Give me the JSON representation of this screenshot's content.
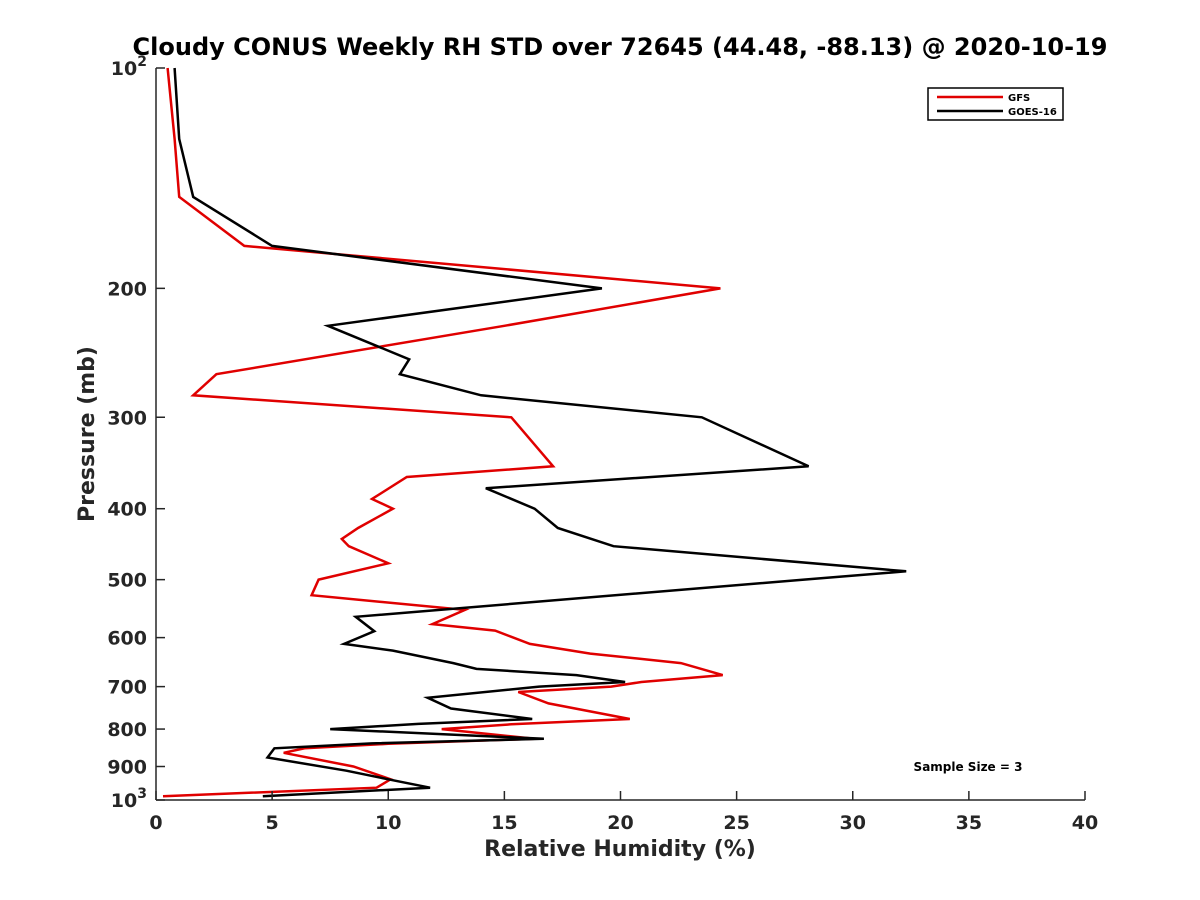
{
  "chart_data": {
    "type": "line",
    "title": "Cloudy CONUS Weekly RH STD over 72645 (44.48, -88.13) @ 2020-10-19",
    "xlabel": "Relative Humidity (%)",
    "ylabel": "Pressure (mb)",
    "xlim": [
      0,
      40
    ],
    "ylim": [
      100,
      1000
    ],
    "y_scale": "log",
    "y_reversed": true,
    "x_ticks": [
      "0",
      "5",
      "10",
      "15",
      "20",
      "25",
      "30",
      "35",
      "40"
    ],
    "y_ticks": [
      {
        "value": 100,
        "base": "10",
        "exp": "2"
      },
      {
        "value": 200,
        "label": "200"
      },
      {
        "value": 300,
        "label": "300"
      },
      {
        "value": 400,
        "label": "400"
      },
      {
        "value": 500,
        "label": "500"
      },
      {
        "value": 600,
        "label": "600"
      },
      {
        "value": 700,
        "label": "700"
      },
      {
        "value": 800,
        "label": "800"
      },
      {
        "value": 900,
        "label": "900"
      },
      {
        "value": 1000,
        "base": "10",
        "exp": "3"
      }
    ],
    "legend_position": "top-right",
    "annotation": "Sample Size = 3",
    "series": [
      {
        "name": "GFS",
        "color": "#e00000",
        "points": [
          [
            0.5,
            100
          ],
          [
            0.8,
            125
          ],
          [
            1.0,
            150
          ],
          [
            3.8,
            175
          ],
          [
            24.3,
            200
          ],
          [
            15.0,
            225
          ],
          [
            2.6,
            262
          ],
          [
            1.6,
            280
          ],
          [
            15.3,
            300
          ],
          [
            17.1,
            350
          ],
          [
            10.8,
            362
          ],
          [
            9.3,
            388
          ],
          [
            10.2,
            400
          ],
          [
            8.7,
            425
          ],
          [
            8.0,
            440
          ],
          [
            8.3,
            450
          ],
          [
            10.0,
            475
          ],
          [
            7.0,
            500
          ],
          [
            6.7,
            525
          ],
          [
            13.3,
            550
          ],
          [
            11.9,
            575
          ],
          [
            14.6,
            587
          ],
          [
            16.1,
            612
          ],
          [
            18.7,
            631
          ],
          [
            22.6,
            650
          ],
          [
            24.4,
            675
          ],
          [
            20.9,
            690
          ],
          [
            19.6,
            700
          ],
          [
            15.6,
            712
          ],
          [
            16.9,
            738
          ],
          [
            20.4,
            775
          ],
          [
            15.3,
            788
          ],
          [
            12.3,
            800
          ],
          [
            16.3,
            825
          ],
          [
            10.0,
            838
          ],
          [
            6.4,
            850
          ],
          [
            5.5,
            862
          ],
          [
            8.5,
            900
          ],
          [
            10.1,
            937
          ],
          [
            9.5,
            962
          ],
          [
            0.3,
            988
          ]
        ]
      },
      {
        "name": "GOES-16",
        "color": "#000000",
        "points": [
          [
            0.8,
            100
          ],
          [
            1.0,
            125
          ],
          [
            1.6,
            150
          ],
          [
            5.0,
            175
          ],
          [
            19.2,
            200
          ],
          [
            7.4,
            225
          ],
          [
            10.9,
            250
          ],
          [
            10.5,
            262
          ],
          [
            14.0,
            280
          ],
          [
            23.5,
            300
          ],
          [
            28.1,
            350
          ],
          [
            14.2,
            375
          ],
          [
            16.3,
            400
          ],
          [
            17.3,
            425
          ],
          [
            19.7,
            450
          ],
          [
            32.3,
            487
          ],
          [
            27.9,
            500
          ],
          [
            8.6,
            562
          ],
          [
            9.4,
            588
          ],
          [
            8.1,
            612
          ],
          [
            10.2,
            625
          ],
          [
            12.8,
            650
          ],
          [
            13.8,
            662
          ],
          [
            18.1,
            675
          ],
          [
            20.2,
            690
          ],
          [
            16.5,
            700
          ],
          [
            11.7,
            725
          ],
          [
            12.7,
            750
          ],
          [
            16.2,
            775
          ],
          [
            11.3,
            787
          ],
          [
            7.5,
            800
          ],
          [
            16.7,
            825
          ],
          [
            9.3,
            837
          ],
          [
            5.1,
            850
          ],
          [
            4.8,
            875
          ],
          [
            8.2,
            912
          ],
          [
            10.0,
            937
          ],
          [
            11.8,
            962
          ],
          [
            4.6,
            988
          ]
        ]
      }
    ]
  }
}
